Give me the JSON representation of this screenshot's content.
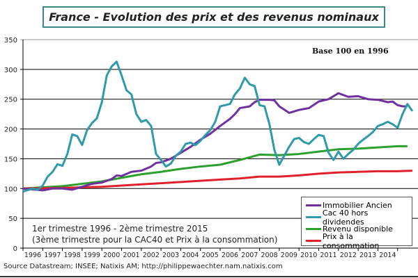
{
  "chart_data": {
    "type": "line",
    "title": "France - Evolution des prix et des revenus nominaux",
    "subtitle": "Base 100 en 1996",
    "annotation": [
      "1er trimestre 1996 - 2ème trimestre 2015",
      "(3ème trimestre pour la  CAC40 et Prix à la  consommation)"
    ],
    "source": "Source Datastream; INSEE; Natixis AM;  http://philippewaechter.nam.natixis.com",
    "ylim": [
      0,
      350
    ],
    "yticks": [
      "0",
      "50",
      "100",
      "150",
      "200",
      "250",
      "300",
      "350"
    ],
    "xticks": [
      "1996",
      "1997",
      "1998",
      "1999",
      "2000",
      "2001",
      "2002",
      "2003",
      "2004",
      "2005",
      "2006",
      "2007",
      "2008",
      "2009",
      "2010",
      "2011",
      "2012",
      "2013",
      "2014"
    ],
    "grid": "horizontal",
    "legend_position": "bottom-right",
    "series": [
      {
        "name": "Immobilier Ancien",
        "color": "#7030a0",
        "points": [
          [
            1996,
            100
          ],
          [
            1997,
            97
          ],
          [
            1997.5,
            100
          ],
          [
            1998,
            100
          ],
          [
            1998.5,
            98
          ],
          [
            1999,
            103
          ],
          [
            1999.5,
            108
          ],
          [
            2000,
            110
          ],
          [
            2000.5,
            116
          ],
          [
            2000.75,
            122
          ],
          [
            2001,
            121
          ],
          [
            2001.5,
            128
          ],
          [
            2002,
            130
          ],
          [
            2002.5,
            137
          ],
          [
            2002.75,
            143
          ],
          [
            2003,
            144
          ],
          [
            2003.5,
            150
          ],
          [
            2004,
            160
          ],
          [
            2004.5,
            170
          ],
          [
            2005,
            182
          ],
          [
            2005.5,
            192
          ],
          [
            2006,
            205
          ],
          [
            2006.5,
            217
          ],
          [
            2006.75,
            225
          ],
          [
            2007,
            235
          ],
          [
            2007.5,
            238
          ],
          [
            2007.75,
            245
          ],
          [
            2008,
            249
          ],
          [
            2008.5,
            249
          ],
          [
            2008.75,
            248
          ],
          [
            2009,
            238
          ],
          [
            2009.5,
            227
          ],
          [
            2010,
            232
          ],
          [
            2010.5,
            235
          ],
          [
            2011,
            246
          ],
          [
            2011.5,
            250
          ],
          [
            2012,
            260
          ],
          [
            2012.5,
            254
          ],
          [
            2013,
            255
          ],
          [
            2013.5,
            250
          ],
          [
            2014,
            249
          ],
          [
            2014.5,
            245
          ],
          [
            2014.75,
            246
          ],
          [
            2015,
            240
          ],
          [
            2015.25,
            238
          ],
          [
            2015.5,
            238
          ]
        ]
      },
      {
        "name": "Cac 40 hors dividendes",
        "color": "#2e9aaa",
        "points": [
          [
            1996,
            95
          ],
          [
            1996.5,
            100
          ],
          [
            1996.75,
            98
          ],
          [
            1997,
            105
          ],
          [
            1997.25,
            120
          ],
          [
            1997.5,
            128
          ],
          [
            1997.75,
            141
          ],
          [
            1998,
            138
          ],
          [
            1998.25,
            158
          ],
          [
            1998.5,
            191
          ],
          [
            1998.75,
            188
          ],
          [
            1999,
            173
          ],
          [
            1999.25,
            198
          ],
          [
            1999.5,
            210
          ],
          [
            1999.75,
            218
          ],
          [
            2000,
            245
          ],
          [
            2000.25,
            290
          ],
          [
            2000.5,
            305
          ],
          [
            2000.75,
            313
          ],
          [
            2001,
            290
          ],
          [
            2001.25,
            265
          ],
          [
            2001.5,
            258
          ],
          [
            2001.75,
            225
          ],
          [
            2002,
            212
          ],
          [
            2002.25,
            215
          ],
          [
            2002.5,
            205
          ],
          [
            2002.75,
            158
          ],
          [
            2003,
            148
          ],
          [
            2003.25,
            137
          ],
          [
            2003.5,
            142
          ],
          [
            2003.75,
            155
          ],
          [
            2004,
            162
          ],
          [
            2004.25,
            175
          ],
          [
            2004.5,
            177
          ],
          [
            2004.75,
            173
          ],
          [
            2005,
            180
          ],
          [
            2005.25,
            190
          ],
          [
            2005.5,
            198
          ],
          [
            2005.75,
            212
          ],
          [
            2006,
            238
          ],
          [
            2006.25,
            240
          ],
          [
            2006.5,
            242
          ],
          [
            2006.75,
            258
          ],
          [
            2007,
            268
          ],
          [
            2007.25,
            286
          ],
          [
            2007.5,
            275
          ],
          [
            2007.75,
            272
          ],
          [
            2008,
            240
          ],
          [
            2008.25,
            238
          ],
          [
            2008.5,
            208
          ],
          [
            2008.75,
            165
          ],
          [
            2009,
            140
          ],
          [
            2009.25,
            155
          ],
          [
            2009.5,
            170
          ],
          [
            2009.75,
            183
          ],
          [
            2010,
            185
          ],
          [
            2010.25,
            178
          ],
          [
            2010.5,
            175
          ],
          [
            2010.75,
            183
          ],
          [
            2011,
            190
          ],
          [
            2011.25,
            188
          ],
          [
            2011.5,
            160
          ],
          [
            2011.75,
            148
          ],
          [
            2012,
            162
          ],
          [
            2012.25,
            150
          ],
          [
            2012.5,
            158
          ],
          [
            2012.75,
            165
          ],
          [
            2013,
            175
          ],
          [
            2013.25,
            182
          ],
          [
            2013.5,
            188
          ],
          [
            2013.75,
            195
          ],
          [
            2014,
            205
          ],
          [
            2014.25,
            208
          ],
          [
            2014.5,
            212
          ],
          [
            2014.75,
            208
          ],
          [
            2015,
            202
          ],
          [
            2015.25,
            225
          ],
          [
            2015.5,
            242
          ],
          [
            2015.75,
            230
          ]
        ]
      },
      {
        "name": "Revenu disponible",
        "color": "#2ca02c",
        "points": [
          [
            1996,
            100
          ],
          [
            1998,
            104
          ],
          [
            2000,
            112
          ],
          [
            2001,
            118
          ],
          [
            2002,
            124
          ],
          [
            2003,
            128
          ],
          [
            2004,
            133
          ],
          [
            2005,
            137
          ],
          [
            2006,
            140
          ],
          [
            2007,
            148
          ],
          [
            2008,
            157
          ],
          [
            2009,
            156
          ],
          [
            2010,
            158
          ],
          [
            2011,
            162
          ],
          [
            2012,
            166
          ],
          [
            2013,
            167
          ],
          [
            2014,
            169
          ],
          [
            2015,
            171
          ],
          [
            2015.5,
            171
          ]
        ]
      },
      {
        "name": "Prix à la consommation",
        "color": "#e0202a",
        "points": [
          [
            1996,
            100
          ],
          [
            1998,
            101
          ],
          [
            2000,
            103
          ],
          [
            2001,
            105
          ],
          [
            2002,
            107
          ],
          [
            2003,
            109
          ],
          [
            2004,
            111
          ],
          [
            2005,
            113
          ],
          [
            2006,
            115
          ],
          [
            2007,
            117
          ],
          [
            2008,
            120
          ],
          [
            2009,
            120
          ],
          [
            2010,
            122
          ],
          [
            2011,
            125
          ],
          [
            2012,
            127
          ],
          [
            2013,
            128
          ],
          [
            2014,
            129
          ],
          [
            2015,
            129
          ],
          [
            2015.75,
            130
          ]
        ]
      }
    ]
  }
}
